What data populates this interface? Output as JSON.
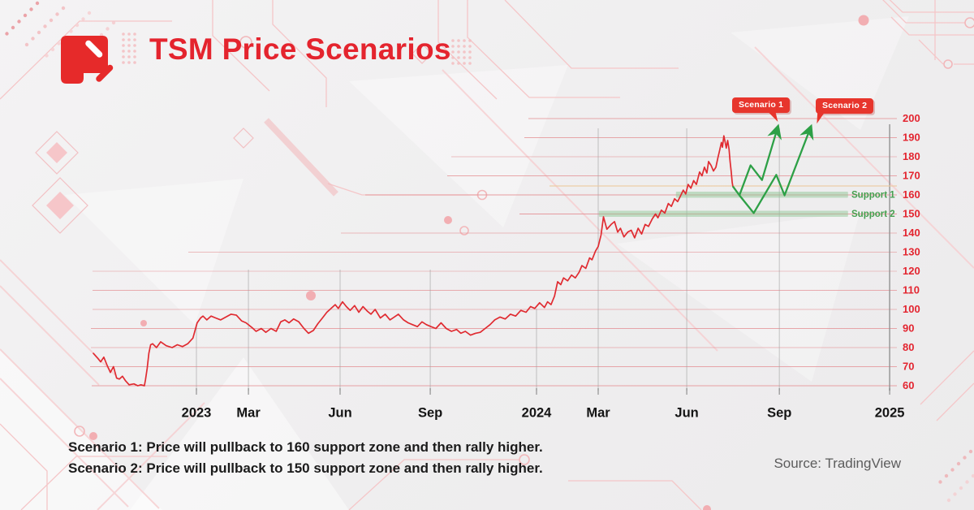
{
  "header": {
    "title": "TSM Price Scenarios"
  },
  "notes": {
    "line1": "Scenario 1: Price will pullback to 160 support zone and then rally higher.",
    "line2": "Scenario 2: Price will pullback to 150 support zone and then rally higher."
  },
  "source": {
    "label": "Source: TradingView"
  },
  "colors": {
    "brand_red": "#e4242e",
    "price_line": "#e02b31",
    "scenario_green": "#2da046",
    "support_band": "#90c795",
    "support_text": "#46a050",
    "grid_red": "#e59397",
    "axis_gray": "#8f8f8f",
    "badge_red": "#e7352c"
  },
  "chart_data": {
    "type": "line",
    "title": "TSM Price Scenarios",
    "xlabel": "",
    "ylabel": "",
    "ylim": [
      60,
      200
    ],
    "xlim": [
      2022.7,
      2025.02
    ],
    "grid": true,
    "legend": "none",
    "x_ticks": [
      {
        "t": 2023.0,
        "label": "2023"
      },
      {
        "t": 2023.15,
        "label": "Mar"
      },
      {
        "t": 2023.414,
        "label": "Jun"
      },
      {
        "t": 2023.674,
        "label": "Sep"
      },
      {
        "t": 2023.98,
        "label": "2024"
      },
      {
        "t": 2024.158,
        "label": "Mar"
      },
      {
        "t": 2024.413,
        "label": "Jun"
      },
      {
        "t": 2024.68,
        "label": "Sep"
      },
      {
        "t": 2024.998,
        "label": "2025"
      }
    ],
    "y_ticks": [
      200,
      190,
      180,
      170,
      160,
      150,
      140,
      130,
      120,
      110,
      100,
      90,
      80,
      70,
      60
    ],
    "series": [
      {
        "name": "TSM price",
        "color": "#e02b31",
        "points": [
          [
            2022.703,
            77
          ],
          [
            2022.715,
            74.5
          ],
          [
            2022.724,
            72.5
          ],
          [
            2022.733,
            75
          ],
          [
            2022.742,
            71
          ],
          [
            2022.752,
            67
          ],
          [
            2022.761,
            70
          ],
          [
            2022.77,
            64
          ],
          [
            2022.778,
            63.5
          ],
          [
            2022.787,
            65
          ],
          [
            2022.796,
            62.5
          ],
          [
            2022.806,
            60.5
          ],
          [
            2022.82,
            61
          ],
          [
            2022.831,
            60
          ],
          [
            2022.84,
            60.5
          ],
          [
            2022.85,
            60
          ],
          [
            2022.853,
            63
          ],
          [
            2022.858,
            69
          ],
          [
            2022.863,
            77
          ],
          [
            2022.868,
            81.5
          ],
          [
            2022.874,
            82
          ],
          [
            2022.885,
            80
          ],
          [
            2022.897,
            83
          ],
          [
            2022.913,
            81
          ],
          [
            2022.93,
            80
          ],
          [
            2022.945,
            81.5
          ],
          [
            2022.96,
            80.5
          ],
          [
            2022.975,
            82
          ],
          [
            2022.99,
            85
          ],
          [
            2023.002,
            93
          ],
          [
            2023.012,
            95.5
          ],
          [
            2023.019,
            96.5
          ],
          [
            2023.03,
            94.5
          ],
          [
            2023.042,
            96.5
          ],
          [
            2023.056,
            95.5
          ],
          [
            2023.07,
            94.5
          ],
          [
            2023.085,
            96
          ],
          [
            2023.1,
            97.5
          ],
          [
            2023.115,
            97
          ],
          [
            2023.13,
            94
          ],
          [
            2023.143,
            93
          ],
          [
            2023.16,
            90.5
          ],
          [
            2023.172,
            88.5
          ],
          [
            2023.187,
            90
          ],
          [
            2023.2,
            88
          ],
          [
            2023.215,
            90
          ],
          [
            2023.23,
            88.5
          ],
          [
            2023.243,
            93.5
          ],
          [
            2023.255,
            94.5
          ],
          [
            2023.267,
            93
          ],
          [
            2023.28,
            95
          ],
          [
            2023.295,
            93.5
          ],
          [
            2023.31,
            90
          ],
          [
            2023.323,
            87.5
          ],
          [
            2023.337,
            89
          ],
          [
            2023.35,
            92.5
          ],
          [
            2023.363,
            95.5
          ],
          [
            2023.376,
            98.5
          ],
          [
            2023.388,
            100.5
          ],
          [
            2023.4,
            102.5
          ],
          [
            2023.409,
            100.5
          ],
          [
            2023.421,
            104
          ],
          [
            2023.432,
            101.5
          ],
          [
            2023.443,
            99.5
          ],
          [
            2023.456,
            102
          ],
          [
            2023.468,
            98.5
          ],
          [
            2023.48,
            101.5
          ],
          [
            2023.493,
            99
          ],
          [
            2023.503,
            97.5
          ],
          [
            2023.515,
            100
          ],
          [
            2023.53,
            95.5
          ],
          [
            2023.544,
            97.5
          ],
          [
            2023.558,
            94.5
          ],
          [
            2023.57,
            96
          ],
          [
            2023.582,
            97.5
          ],
          [
            2023.597,
            94.5
          ],
          [
            2023.61,
            93
          ],
          [
            2023.623,
            92
          ],
          [
            2023.637,
            91
          ],
          [
            2023.65,
            93.5
          ],
          [
            2023.663,
            92
          ],
          [
            2023.676,
            91
          ],
          [
            2023.69,
            90
          ],
          [
            2023.705,
            93
          ],
          [
            2023.72,
            90
          ],
          [
            2023.735,
            88.5
          ],
          [
            2023.75,
            89.5
          ],
          [
            2023.762,
            87.5
          ],
          [
            2023.775,
            88.5
          ],
          [
            2023.79,
            86.5
          ],
          [
            2023.804,
            87.5
          ],
          [
            2023.818,
            88
          ],
          [
            2023.832,
            90
          ],
          [
            2023.846,
            92
          ],
          [
            2023.86,
            94.5
          ],
          [
            2023.875,
            96
          ],
          [
            2023.89,
            95
          ],
          [
            2023.905,
            97.5
          ],
          [
            2023.92,
            96.5
          ],
          [
            2023.935,
            99.5
          ],
          [
            2023.95,
            98.5
          ],
          [
            2023.963,
            101.5
          ],
          [
            2023.975,
            100.5
          ],
          [
            2023.989,
            103.5
          ],
          [
            2024.003,
            101
          ],
          [
            2024.012,
            104
          ],
          [
            2024.022,
            102.5
          ],
          [
            2024.032,
            107
          ],
          [
            2024.041,
            114.5
          ],
          [
            2024.05,
            113
          ],
          [
            2024.058,
            116.5
          ],
          [
            2024.07,
            115
          ],
          [
            2024.081,
            118
          ],
          [
            2024.092,
            116.5
          ],
          [
            2024.103,
            119.5
          ],
          [
            2024.111,
            123
          ],
          [
            2024.122,
            121.5
          ],
          [
            2024.133,
            127
          ],
          [
            2024.14,
            126
          ],
          [
            2024.15,
            130.5
          ],
          [
            2024.158,
            133
          ],
          [
            2024.166,
            139
          ],
          [
            2024.173,
            148.5
          ],
          [
            2024.183,
            142
          ],
          [
            2024.195,
            144.5
          ],
          [
            2024.205,
            146
          ],
          [
            2024.214,
            140.5
          ],
          [
            2024.222,
            142.5
          ],
          [
            2024.232,
            138
          ],
          [
            2024.243,
            140.5
          ],
          [
            2024.253,
            141.5
          ],
          [
            2024.263,
            137.5
          ],
          [
            2024.273,
            142.5
          ],
          [
            2024.283,
            139.5
          ],
          [
            2024.293,
            144.5
          ],
          [
            2024.303,
            143.5
          ],
          [
            2024.314,
            147.5
          ],
          [
            2024.323,
            150
          ],
          [
            2024.33,
            148
          ],
          [
            2024.34,
            152
          ],
          [
            2024.35,
            150.5
          ],
          [
            2024.36,
            155.5
          ],
          [
            2024.369,
            154
          ],
          [
            2024.378,
            158
          ],
          [
            2024.387,
            156.5
          ],
          [
            2024.395,
            159.5
          ],
          [
            2024.403,
            162.5
          ],
          [
            2024.41,
            160.5
          ],
          [
            2024.417,
            165.5
          ],
          [
            2024.425,
            163.5
          ],
          [
            2024.433,
            167.5
          ],
          [
            2024.441,
            165.5
          ],
          [
            2024.45,
            172
          ],
          [
            2024.457,
            170
          ],
          [
            2024.464,
            174.5
          ],
          [
            2024.471,
            171.5
          ],
          [
            2024.476,
            177.5
          ],
          [
            2024.483,
            175.5
          ],
          [
            2024.49,
            172.5
          ],
          [
            2024.497,
            174.5
          ],
          [
            2024.503,
            179.5
          ],
          [
            2024.508,
            183.5
          ],
          [
            2024.513,
            187.5
          ],
          [
            2024.516,
            185
          ],
          [
            2024.52,
            191
          ],
          [
            2024.524,
            187.5
          ],
          [
            2024.527,
            184.5
          ],
          [
            2024.531,
            188.5
          ],
          [
            2024.535,
            184
          ],
          [
            2024.538,
            177.5
          ],
          [
            2024.541,
            172.5
          ],
          [
            2024.544,
            166.5
          ],
          [
            2024.546,
            164.5
          ]
        ]
      }
    ],
    "scenarios": [
      {
        "name": "Scenario 1",
        "color": "#2da046",
        "points": [
          [
            2024.546,
            164.5
          ],
          [
            2024.565,
            159.8
          ],
          [
            2024.597,
            175.5
          ],
          [
            2024.63,
            167.8
          ],
          [
            2024.672,
            193.5
          ]
        ]
      },
      {
        "name": "Scenario 2",
        "color": "#2da046",
        "points": [
          [
            2024.565,
            159.8
          ],
          [
            2024.606,
            150.5
          ],
          [
            2024.671,
            170.5
          ],
          [
            2024.695,
            159.8
          ],
          [
            2024.766,
            193.5
          ]
        ]
      }
    ],
    "support_zones": [
      {
        "label": "Support 1",
        "price": 160,
        "t_start": 2024.382,
        "t_end": 2024.878
      },
      {
        "label": "Support 2",
        "price": 150,
        "t_start": 2024.16,
        "t_end": 2024.878
      }
    ],
    "reference_line": {
      "price": 164.7,
      "color": "#ecc9a0"
    },
    "annotations": [
      {
        "label": "Scenario 1"
      },
      {
        "label": "Scenario 2"
      }
    ]
  }
}
